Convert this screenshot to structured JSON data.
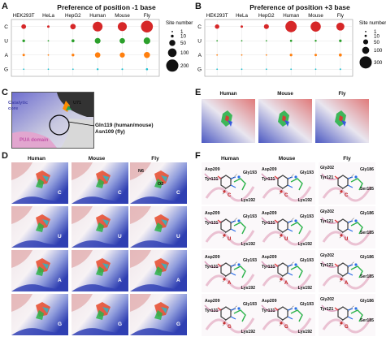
{
  "panels": {
    "A": {
      "label": "A",
      "title": "Preference of position -1 base",
      "columns": [
        "HEK293T",
        "HeLa",
        "HepG2",
        "Human",
        "Mouse",
        "Fly"
      ],
      "rows": [
        "C",
        "U",
        "A",
        "G"
      ]
    },
    "B": {
      "label": "B",
      "title": "Preference of position +3 base",
      "columns": [
        "HEK293T",
        "HeLa",
        "HepG2",
        "Human",
        "Mouse",
        "Fly"
      ],
      "rows": [
        "C",
        "U",
        "A",
        "G"
      ]
    },
    "C": {
      "label": "C",
      "catalytic": "Catalytic\ncore",
      "catalytic_line1": "Catalytic",
      "catalytic_line2": "core",
      "pua": "PUA domain",
      "u71": "U71",
      "gln": "Gln119 (human/mouse)",
      "asn": "Asn109 (fly)"
    },
    "D": {
      "label": "D",
      "columns": [
        "Human",
        "Mouse",
        "Fly"
      ],
      "rows": [
        "C",
        "U",
        "A",
        "G"
      ],
      "fly_annot": [
        "N6",
        "O2"
      ]
    },
    "E": {
      "label": "E",
      "columns": [
        "Human",
        "Mouse",
        "Fly"
      ]
    },
    "F": {
      "label": "F",
      "columns": [
        "Human",
        "Mouse",
        "Fly"
      ],
      "rows": [
        "C",
        "U",
        "A",
        "G"
      ],
      "hm_labels": [
        "Asp209",
        "Gly193",
        "Tyr131",
        "Lys192"
      ],
      "fly_labels": [
        "Gly202",
        "Gly186",
        "Tyr121",
        "Ser185"
      ]
    }
  },
  "legend": {
    "title": "Site number",
    "A_values": [
      "1",
      "10",
      "50",
      "100",
      "200"
    ],
    "B_values": [
      "1",
      "10",
      "50",
      "100",
      "300"
    ]
  },
  "chart_data": [
    {
      "type": "scatter",
      "title": "Preference of position -1 base",
      "x_categories": [
        "HEK293T",
        "HeLa",
        "HepG2",
        "Human",
        "Mouse",
        "Fly"
      ],
      "y_categories": [
        "C",
        "U",
        "A",
        "G"
      ],
      "size_legend": "Site number",
      "series": [
        {
          "name": "C",
          "color": "#d62728",
          "values": [
            30,
            8,
            40,
            130,
            110,
            190
          ]
        },
        {
          "name": "U",
          "color": "#2ca02c",
          "values": [
            10,
            3,
            12,
            45,
            40,
            60
          ]
        },
        {
          "name": "A",
          "color": "#ff7f0e",
          "values": [
            8,
            2,
            10,
            40,
            35,
            50
          ]
        },
        {
          "name": "G",
          "color": "#17becf",
          "values": [
            1,
            1,
            2,
            5,
            4,
            6
          ]
        }
      ]
    },
    {
      "type": "scatter",
      "title": "Preference of position +3 base",
      "x_categories": [
        "HEK293T",
        "HeLa",
        "HepG2",
        "Human",
        "Mouse",
        "Fly"
      ],
      "y_categories": [
        "C",
        "U",
        "A",
        "G"
      ],
      "size_legend": "Site number",
      "series": [
        {
          "name": "C",
          "color": "#d62728",
          "values": [
            40,
            12,
            50,
            260,
            210,
            130
          ]
        },
        {
          "name": "U",
          "color": "#2ca02c",
          "values": [
            2,
            1,
            3,
            10,
            8,
            14
          ]
        },
        {
          "name": "A",
          "color": "#ff7f0e",
          "values": [
            3,
            1,
            4,
            14,
            12,
            18
          ]
        },
        {
          "name": "G",
          "color": "#17becf",
          "values": [
            1,
            1,
            1,
            4,
            3,
            5
          ]
        }
      ]
    }
  ]
}
